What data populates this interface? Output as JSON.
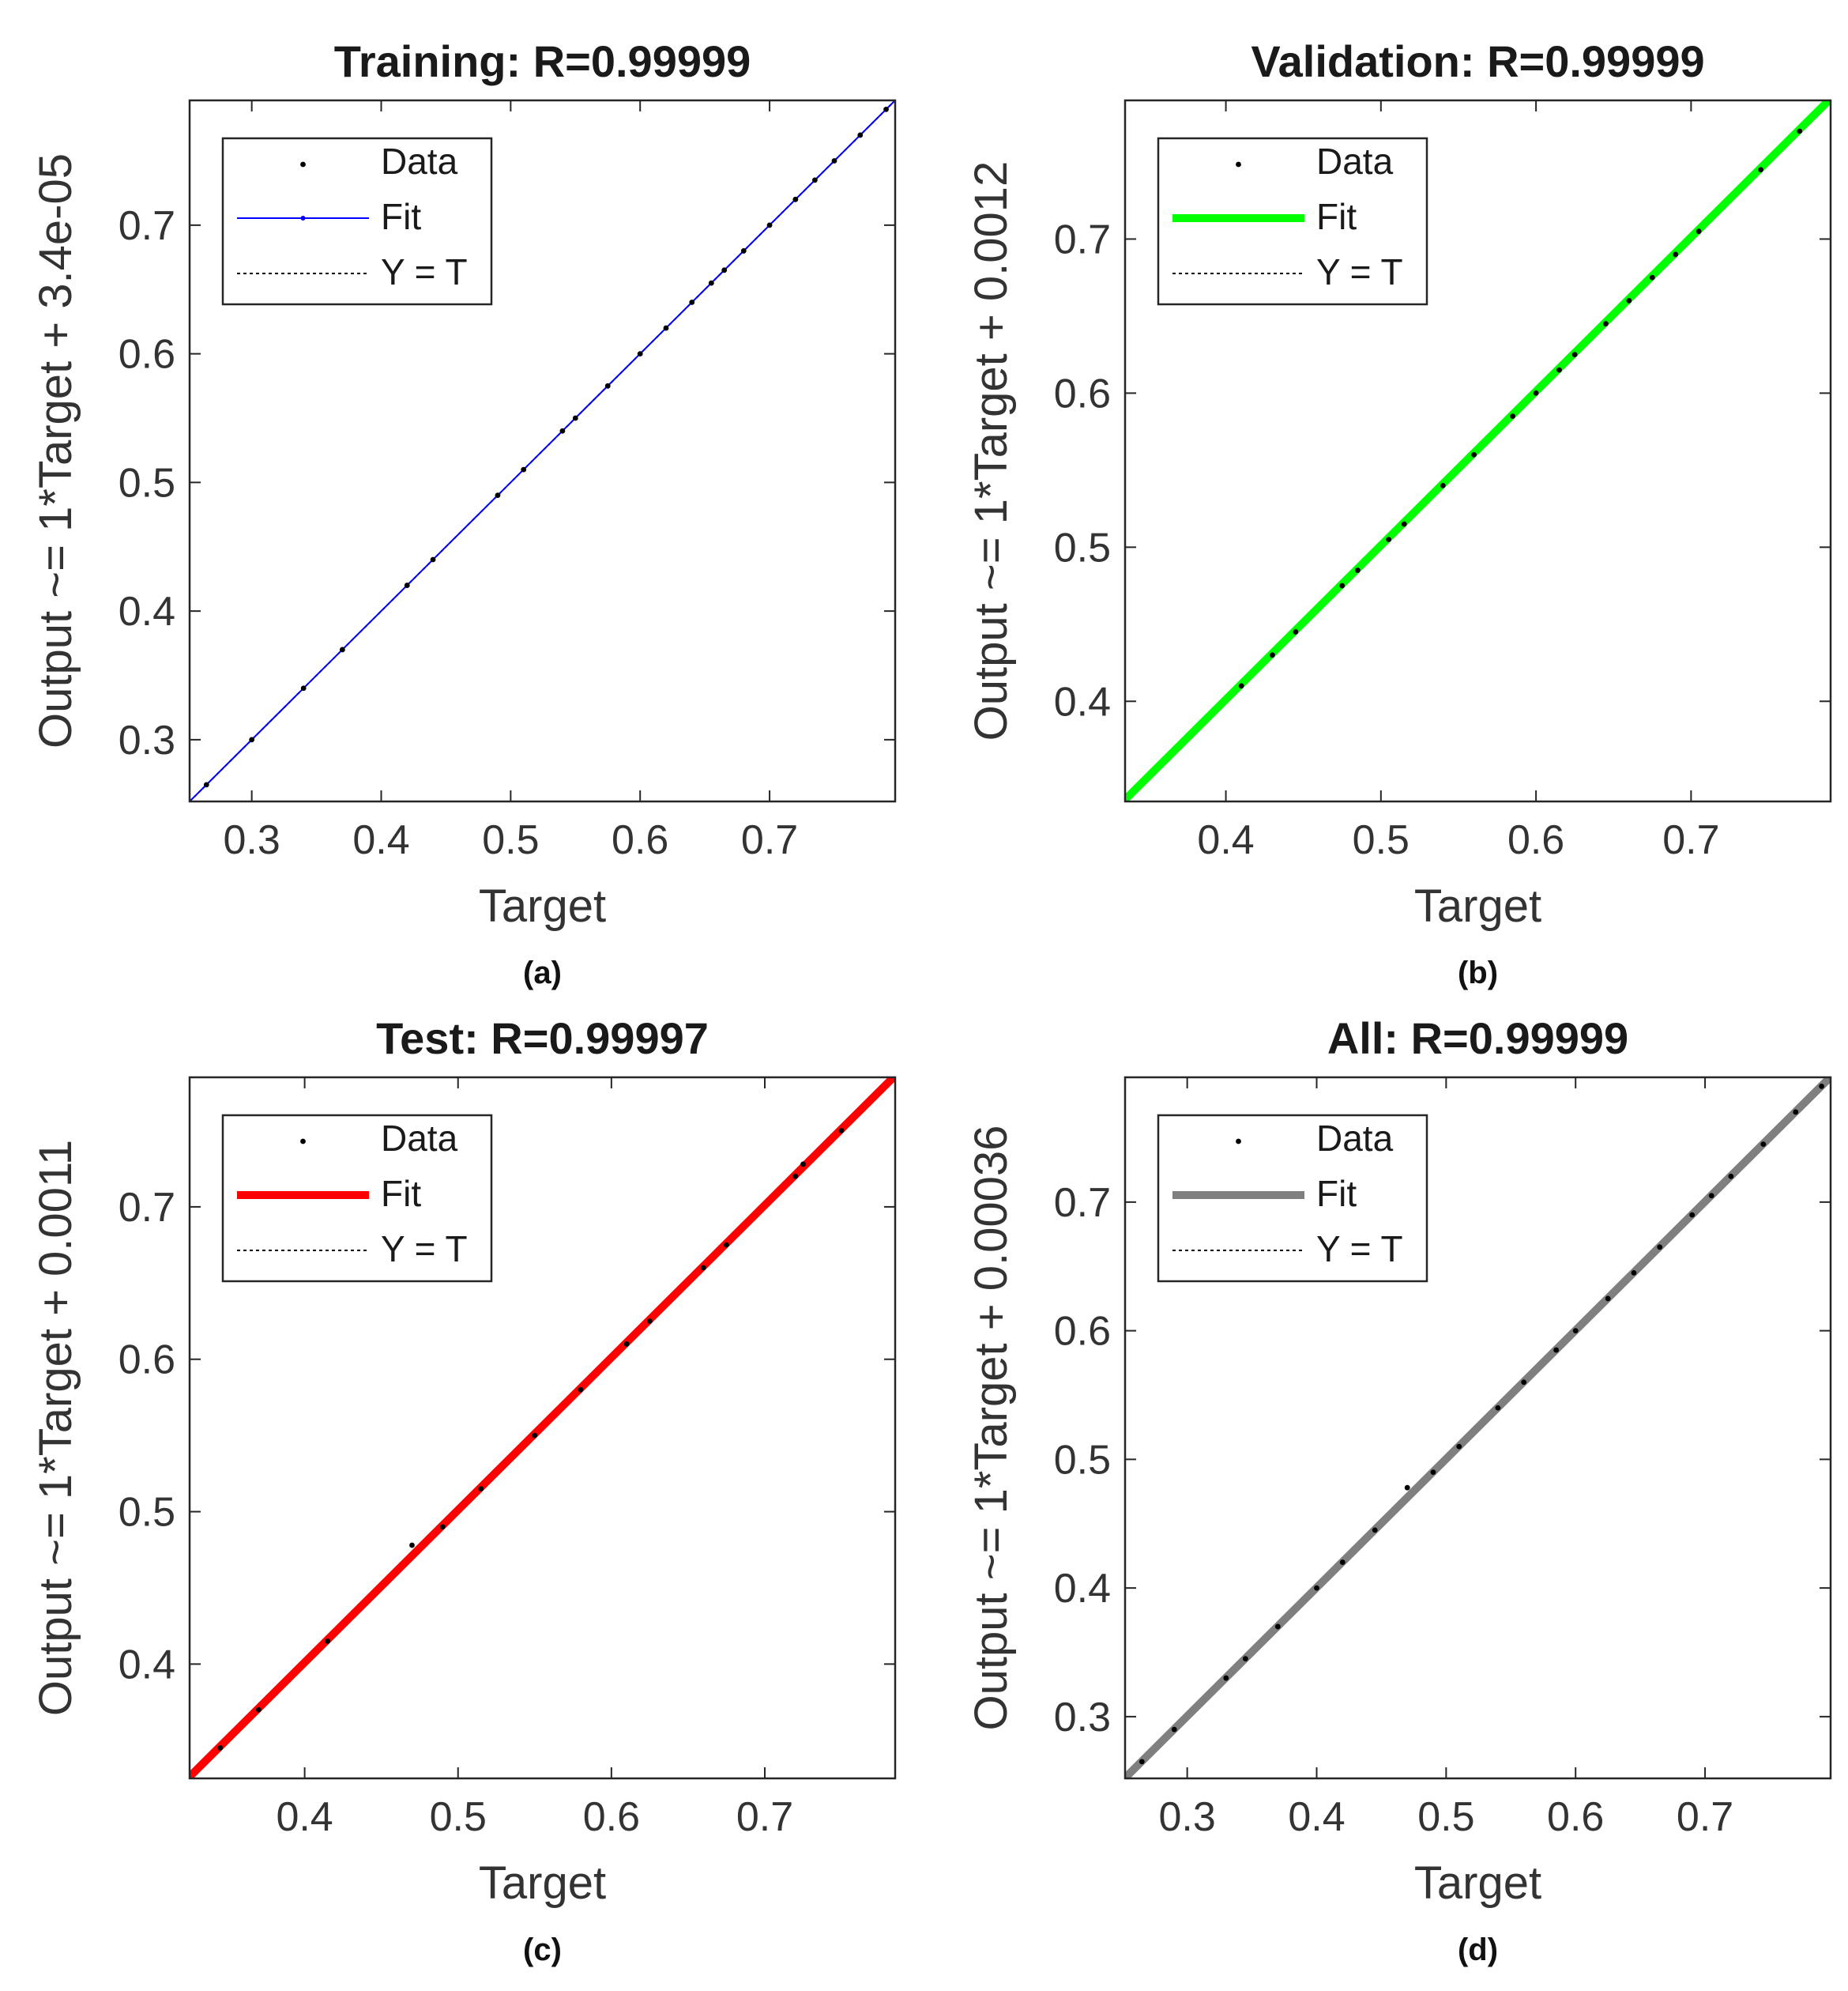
{
  "colors": {
    "frame": "#262626",
    "data_marker": "#000000",
    "ideal_line": "#000000"
  },
  "chart_data": [
    {
      "panel": "a",
      "type": "scatter",
      "title": "Training: R=0.99999",
      "xlabel": "Target",
      "ylabel": "Output ~= 1*Target + 3.4e-05",
      "caption": "(a)",
      "xlim": [
        0.252,
        0.797
      ],
      "ylim": [
        0.252,
        0.797
      ],
      "xticks": [
        0.3,
        0.4,
        0.5,
        0.6,
        0.7
      ],
      "yticks": [
        0.3,
        0.4,
        0.5,
        0.6,
        0.7
      ],
      "fit": {
        "slope": 1,
        "intercept": 3.4e-05,
        "color": "#0000ff",
        "width": 2,
        "marker": true
      },
      "legend": [
        {
          "key": "data",
          "label": "Data"
        },
        {
          "key": "fit",
          "label": "Fit"
        },
        {
          "key": "ideal",
          "label": "Y = T"
        }
      ],
      "data_points": [
        [
          0.265,
          0.265
        ],
        [
          0.3,
          0.3
        ],
        [
          0.34,
          0.34
        ],
        [
          0.37,
          0.37
        ],
        [
          0.42,
          0.42
        ],
        [
          0.44,
          0.44
        ],
        [
          0.49,
          0.49
        ],
        [
          0.51,
          0.51
        ],
        [
          0.54,
          0.54
        ],
        [
          0.55,
          0.55
        ],
        [
          0.575,
          0.575
        ],
        [
          0.6,
          0.6
        ],
        [
          0.62,
          0.62
        ],
        [
          0.64,
          0.64
        ],
        [
          0.655,
          0.655
        ],
        [
          0.665,
          0.665
        ],
        [
          0.68,
          0.68
        ],
        [
          0.7,
          0.7
        ],
        [
          0.72,
          0.72
        ],
        [
          0.735,
          0.735
        ],
        [
          0.75,
          0.75
        ],
        [
          0.77,
          0.77
        ],
        [
          0.79,
          0.79
        ]
      ]
    },
    {
      "panel": "b",
      "type": "scatter",
      "title": "Validation: R=0.99999",
      "xlabel": "Target",
      "ylabel": "Output ~= 1*Target + 0.0012",
      "caption": "(b)",
      "xlim": [
        0.335,
        0.79
      ],
      "ylim": [
        0.335,
        0.79
      ],
      "xticks": [
        0.4,
        0.5,
        0.6,
        0.7
      ],
      "yticks": [
        0.4,
        0.5,
        0.6,
        0.7
      ],
      "fit": {
        "slope": 1,
        "intercept": 0.0012,
        "color": "#00ff00",
        "width": 10,
        "marker": false
      },
      "legend": [
        {
          "key": "data",
          "label": "Data"
        },
        {
          "key": "fit",
          "label": "Fit"
        },
        {
          "key": "ideal",
          "label": "Y = T"
        }
      ],
      "data_points": [
        [
          0.41,
          0.41
        ],
        [
          0.43,
          0.43
        ],
        [
          0.445,
          0.445
        ],
        [
          0.475,
          0.475
        ],
        [
          0.485,
          0.485
        ],
        [
          0.505,
          0.505
        ],
        [
          0.515,
          0.515
        ],
        [
          0.54,
          0.54
        ],
        [
          0.56,
          0.56
        ],
        [
          0.585,
          0.585
        ],
        [
          0.6,
          0.6
        ],
        [
          0.615,
          0.615
        ],
        [
          0.625,
          0.625
        ],
        [
          0.645,
          0.645
        ],
        [
          0.66,
          0.66
        ],
        [
          0.675,
          0.675
        ],
        [
          0.69,
          0.69
        ],
        [
          0.705,
          0.705
        ],
        [
          0.745,
          0.745
        ],
        [
          0.77,
          0.77
        ]
      ]
    },
    {
      "panel": "c",
      "type": "scatter",
      "title": "Test: R=0.99997",
      "xlabel": "Target",
      "ylabel": "Output ~= 1*Target + 0.0011",
      "caption": "(c)",
      "xlim": [
        0.325,
        0.785
      ],
      "ylim": [
        0.325,
        0.785
      ],
      "xticks": [
        0.4,
        0.5,
        0.6,
        0.7
      ],
      "yticks": [
        0.4,
        0.5,
        0.6,
        0.7
      ],
      "fit": {
        "slope": 1,
        "intercept": 0.0011,
        "color": "#ff0000",
        "width": 10,
        "marker": false
      },
      "legend": [
        {
          "key": "data",
          "label": "Data"
        },
        {
          "key": "fit",
          "label": "Fit"
        },
        {
          "key": "ideal",
          "label": "Y = T"
        }
      ],
      "data_points": [
        [
          0.345,
          0.345
        ],
        [
          0.37,
          0.37
        ],
        [
          0.415,
          0.415
        ],
        [
          0.47,
          0.478
        ],
        [
          0.49,
          0.49
        ],
        [
          0.515,
          0.515
        ],
        [
          0.55,
          0.55
        ],
        [
          0.58,
          0.58
        ],
        [
          0.61,
          0.61
        ],
        [
          0.625,
          0.625
        ],
        [
          0.66,
          0.66
        ],
        [
          0.675,
          0.675
        ],
        [
          0.72,
          0.72
        ],
        [
          0.725,
          0.728
        ],
        [
          0.75,
          0.75
        ]
      ]
    },
    {
      "panel": "d",
      "type": "scatter",
      "title": "All: R=0.99999",
      "xlabel": "Target",
      "ylabel": "Output ~= 1*Target + 0.00036",
      "caption": "(d)",
      "xlim": [
        0.252,
        0.797
      ],
      "ylim": [
        0.252,
        0.797
      ],
      "xticks": [
        0.3,
        0.4,
        0.5,
        0.6,
        0.7
      ],
      "yticks": [
        0.3,
        0.4,
        0.5,
        0.6,
        0.7
      ],
      "fit": {
        "slope": 1,
        "intercept": 0.00036,
        "color": "#7f7f7f",
        "width": 10,
        "marker": false
      },
      "legend": [
        {
          "key": "data",
          "label": "Data"
        },
        {
          "key": "fit",
          "label": "Fit"
        },
        {
          "key": "ideal",
          "label": "Y = T"
        }
      ],
      "data_points": [
        [
          0.265,
          0.265
        ],
        [
          0.29,
          0.29
        ],
        [
          0.33,
          0.33
        ],
        [
          0.345,
          0.345
        ],
        [
          0.37,
          0.37
        ],
        [
          0.4,
          0.4
        ],
        [
          0.42,
          0.42
        ],
        [
          0.445,
          0.445
        ],
        [
          0.47,
          0.478
        ],
        [
          0.49,
          0.49
        ],
        [
          0.51,
          0.51
        ],
        [
          0.54,
          0.54
        ],
        [
          0.56,
          0.56
        ],
        [
          0.585,
          0.585
        ],
        [
          0.6,
          0.6
        ],
        [
          0.625,
          0.625
        ],
        [
          0.645,
          0.645
        ],
        [
          0.665,
          0.665
        ],
        [
          0.69,
          0.69
        ],
        [
          0.705,
          0.705
        ],
        [
          0.72,
          0.72
        ],
        [
          0.745,
          0.745
        ],
        [
          0.77,
          0.77
        ],
        [
          0.79,
          0.79
        ]
      ]
    }
  ]
}
